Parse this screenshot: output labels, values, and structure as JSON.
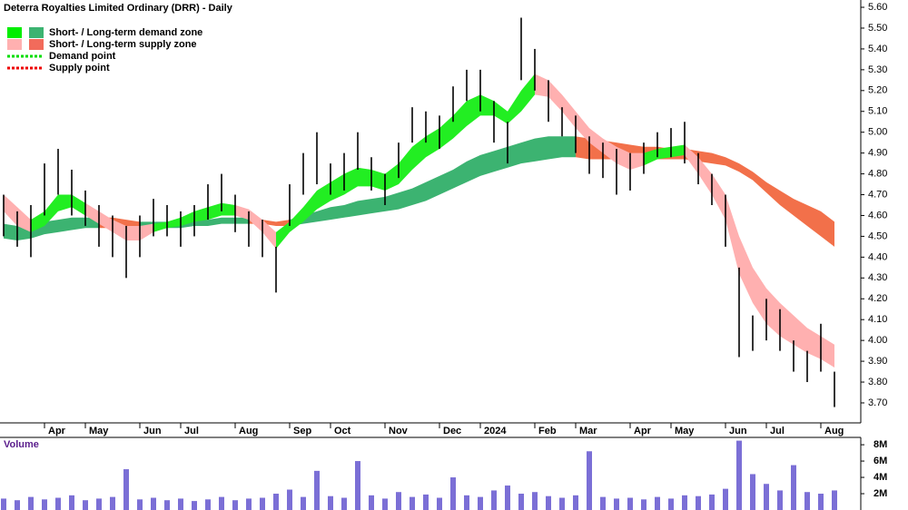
{
  "chart_data": [
    {
      "type": "ohlc",
      "title": "Deterra Royalties Limited Ordinary (DRR) - Daily",
      "categories": [
        null,
        null,
        null,
        "Apr",
        null,
        null,
        "May",
        null,
        null,
        null,
        "Jun",
        null,
        null,
        "Jul",
        null,
        null,
        null,
        "Aug",
        null,
        null,
        null,
        "Sep",
        null,
        null,
        "Oct",
        null,
        null,
        null,
        "Nov",
        null,
        null,
        null,
        "Dec",
        null,
        null,
        "2024",
        null,
        null,
        null,
        "Feb",
        null,
        null,
        "Mar",
        null,
        null,
        null,
        "Apr",
        null,
        null,
        "May",
        null,
        null,
        null,
        "Jun",
        null,
        null,
        "Jul",
        null,
        null,
        null,
        "Aug",
        null
      ],
      "high": [
        4.7,
        4.62,
        4.65,
        4.85,
        4.92,
        4.82,
        4.72,
        4.65,
        4.6,
        4.55,
        4.6,
        4.68,
        4.65,
        4.62,
        4.65,
        4.75,
        4.8,
        4.7,
        4.62,
        4.58,
        4.45,
        4.75,
        4.9,
        5.0,
        4.85,
        4.9,
        5.0,
        4.88,
        4.8,
        4.95,
        5.12,
        5.1,
        5.08,
        5.22,
        5.3,
        5.3,
        5.15,
        5.05,
        5.55,
        5.4,
        5.25,
        5.12,
        5.08,
        4.98,
        4.95,
        4.92,
        4.9,
        4.95,
        5.0,
        5.02,
        5.05,
        4.9,
        4.8,
        4.7,
        4.35,
        4.12,
        4.2,
        4.15,
        4.0,
        3.95,
        4.08,
        3.85
      ],
      "low": [
        4.5,
        4.45,
        4.4,
        4.6,
        4.7,
        4.6,
        4.55,
        4.45,
        4.4,
        4.3,
        4.4,
        4.5,
        4.5,
        4.45,
        4.5,
        4.58,
        4.62,
        4.52,
        4.45,
        4.4,
        4.23,
        4.55,
        4.7,
        4.75,
        4.7,
        4.72,
        4.82,
        4.72,
        4.65,
        4.78,
        4.95,
        4.95,
        4.92,
        5.05,
        5.15,
        5.1,
        4.95,
        4.85,
        5.25,
        5.2,
        5.05,
        4.98,
        4.9,
        4.8,
        4.78,
        4.7,
        4.72,
        4.8,
        4.88,
        4.88,
        4.85,
        4.75,
        4.65,
        4.45,
        3.92,
        3.95,
        4.0,
        3.95,
        3.85,
        3.8,
        3.85,
        3.68
      ],
      "color": "#000000",
      "bands": [
        {
          "color": "#3cb371",
          "upper": [
            4.56,
            4.55,
            4.56,
            4.57,
            4.58,
            4.59,
            4.59,
            4.59,
            null,
            null,
            4.57,
            4.57,
            4.57,
            4.57,
            4.58,
            4.58,
            4.59,
            4.59,
            4.59,
            null,
            null,
            4.58,
            4.6,
            4.62,
            4.64,
            4.65,
            4.67,
            4.68,
            4.69,
            4.71,
            4.73,
            4.76,
            4.79,
            4.82,
            4.86,
            4.89,
            4.91,
            4.93,
            4.95,
            4.97,
            4.98,
            4.98,
            4.98,
            null,
            null,
            null,
            null,
            null,
            null,
            null,
            null,
            null,
            null,
            null,
            null,
            null,
            null,
            null,
            null,
            null,
            null,
            null
          ],
          "lower": [
            4.49,
            4.48,
            4.49,
            4.51,
            4.52,
            4.53,
            4.54,
            4.54,
            null,
            null,
            4.54,
            4.54,
            4.54,
            4.54,
            4.55,
            4.55,
            4.56,
            4.56,
            4.56,
            null,
            null,
            4.55,
            4.56,
            4.57,
            4.58,
            4.59,
            4.6,
            4.61,
            4.62,
            4.63,
            4.65,
            4.67,
            4.7,
            4.73,
            4.76,
            4.79,
            4.81,
            4.83,
            4.85,
            4.86,
            4.87,
            4.88,
            4.88,
            null,
            null,
            null,
            null,
            null,
            null,
            null,
            null,
            null,
            null,
            null,
            null,
            null,
            null,
            null,
            null,
            null,
            null,
            null
          ]
        },
        {
          "color": "#f2704a",
          "upper": [
            null,
            null,
            null,
            null,
            null,
            null,
            null,
            4.59,
            4.59,
            4.58,
            4.57,
            null,
            null,
            null,
            null,
            null,
            null,
            null,
            4.59,
            4.58,
            4.57,
            4.58,
            null,
            null,
            null,
            null,
            null,
            null,
            null,
            null,
            null,
            null,
            null,
            null,
            null,
            null,
            null,
            null,
            null,
            null,
            null,
            null,
            4.98,
            4.97,
            4.96,
            4.95,
            4.94,
            4.93,
            4.93,
            4.92,
            4.92,
            4.91,
            4.9,
            4.88,
            4.85,
            4.81,
            4.76,
            4.72,
            4.68,
            4.65,
            4.62,
            4.57
          ],
          "lower": [
            null,
            null,
            null,
            null,
            null,
            null,
            null,
            4.54,
            4.54,
            4.54,
            4.54,
            null,
            null,
            null,
            null,
            null,
            null,
            null,
            4.56,
            4.56,
            4.55,
            4.55,
            null,
            null,
            null,
            null,
            null,
            null,
            null,
            null,
            null,
            null,
            null,
            null,
            null,
            null,
            null,
            null,
            null,
            null,
            null,
            null,
            4.88,
            4.87,
            4.87,
            4.87,
            4.87,
            4.87,
            4.87,
            4.87,
            4.87,
            4.86,
            4.85,
            4.84,
            4.81,
            4.77,
            4.71,
            4.65,
            4.6,
            4.55,
            4.5,
            4.45
          ]
        },
        {
          "color": "#22ee22",
          "upper": [
            null,
            null,
            4.58,
            4.62,
            4.7,
            4.7,
            4.66,
            null,
            null,
            null,
            null,
            4.56,
            4.57,
            4.59,
            4.62,
            4.64,
            4.66,
            4.65,
            null,
            null,
            4.52,
            4.57,
            4.64,
            4.72,
            4.76,
            4.8,
            4.83,
            4.82,
            4.8,
            4.85,
            4.93,
            4.98,
            5.02,
            5.08,
            5.15,
            5.18,
            5.15,
            5.1,
            5.2,
            5.28,
            null,
            null,
            null,
            null,
            null,
            null,
            null,
            4.9,
            4.92,
            4.93,
            4.94,
            null,
            null,
            null,
            null,
            null,
            null,
            null,
            null,
            null,
            null,
            null
          ],
          "lower": [
            null,
            null,
            4.52,
            4.55,
            4.62,
            4.64,
            4.6,
            null,
            null,
            null,
            null,
            4.52,
            4.54,
            4.55,
            4.57,
            4.58,
            4.6,
            4.6,
            null,
            null,
            4.44,
            4.52,
            4.57,
            4.63,
            4.67,
            4.7,
            4.74,
            4.74,
            4.72,
            4.75,
            4.82,
            4.88,
            4.92,
            4.97,
            5.03,
            5.08,
            5.08,
            5.04,
            5.1,
            5.18,
            null,
            null,
            null,
            null,
            null,
            null,
            null,
            4.84,
            4.87,
            4.88,
            4.89,
            null,
            null,
            null,
            null,
            null,
            null,
            null,
            null,
            null,
            null,
            null
          ]
        },
        {
          "color": "#ffb0b0",
          "upper": [
            4.7,
            4.64,
            4.58,
            null,
            null,
            null,
            4.66,
            4.62,
            4.58,
            4.55,
            4.55,
            4.56,
            null,
            null,
            null,
            null,
            null,
            4.65,
            4.63,
            4.58,
            4.52,
            null,
            null,
            null,
            null,
            null,
            null,
            null,
            null,
            null,
            null,
            null,
            null,
            null,
            null,
            null,
            null,
            null,
            null,
            5.28,
            5.25,
            5.18,
            5.1,
            5.02,
            4.97,
            4.93,
            4.9,
            4.9,
            null,
            null,
            4.94,
            4.88,
            4.8,
            4.7,
            4.5,
            4.35,
            4.25,
            4.18,
            4.12,
            4.06,
            4.02,
            3.98
          ],
          "lower": [
            4.62,
            4.55,
            4.52,
            null,
            null,
            null,
            4.6,
            4.56,
            4.52,
            4.48,
            4.48,
            4.52,
            null,
            null,
            null,
            null,
            null,
            4.6,
            4.58,
            4.52,
            4.44,
            null,
            null,
            null,
            null,
            null,
            null,
            null,
            null,
            null,
            null,
            null,
            null,
            null,
            null,
            null,
            null,
            null,
            null,
            5.18,
            5.17,
            5.1,
            5.02,
            4.95,
            4.9,
            4.85,
            4.82,
            4.84,
            null,
            null,
            4.89,
            4.8,
            4.7,
            4.58,
            4.32,
            4.18,
            4.08,
            4.02,
            3.98,
            3.94,
            3.91,
            3.87
          ]
        }
      ],
      "legend": [
        {
          "label": "Short- / Long-term demand zone",
          "colors": [
            "#00ee00",
            "#3cb371"
          ],
          "style": "solid"
        },
        {
          "label": "Short- / Long-term supply zone",
          "colors": [
            "#ffb0b0",
            "#f26b5b"
          ],
          "style": "solid"
        },
        {
          "label": "Demand point",
          "colors": [
            "#00dd00"
          ],
          "style": "dotted"
        },
        {
          "label": "Supply point",
          "colors": [
            "#ee0000"
          ],
          "style": "dotted"
        }
      ],
      "ylim": [
        3.604,
        5.635
      ],
      "yticks": [
        {
          "value": 3.7,
          "label": "3.70"
        },
        {
          "value": 3.8,
          "label": "3.80"
        },
        {
          "value": 3.9,
          "label": "3.90"
        },
        {
          "value": 4.0,
          "label": "4.00"
        },
        {
          "value": 4.1,
          "label": "4.10"
        },
        {
          "value": 4.2,
          "label": "4.20"
        },
        {
          "value": 4.3,
          "label": "4.30"
        },
        {
          "value": 4.4,
          "label": "4.40"
        },
        {
          "value": 4.5,
          "label": "4.50"
        },
        {
          "value": 4.6,
          "label": "4.60"
        },
        {
          "value": 4.7,
          "label": "4.70"
        },
        {
          "value": 4.8,
          "label": "4.80"
        },
        {
          "value": 4.9,
          "label": "4.90"
        },
        {
          "value": 5.0,
          "label": "5.00"
        },
        {
          "value": 5.1,
          "label": "5.10"
        },
        {
          "value": 5.2,
          "label": "5.20"
        },
        {
          "value": 5.3,
          "label": "5.30"
        },
        {
          "value": 5.4,
          "label": "5.40"
        },
        {
          "value": 5.5,
          "label": "5.50"
        },
        {
          "value": 5.6,
          "label": "5.60"
        }
      ],
      "grid": false
    },
    {
      "type": "bar",
      "title": "Volume",
      "color": "#7b6fd6",
      "values": [
        1.4,
        1.2,
        1.6,
        1.3,
        1.5,
        1.8,
        1.2,
        1.4,
        1.6,
        5.0,
        1.3,
        1.5,
        1.2,
        1.4,
        1.1,
        1.3,
        1.6,
        1.2,
        1.4,
        1.5,
        2.0,
        2.5,
        1.6,
        4.8,
        1.7,
        1.5,
        6.0,
        1.8,
        1.4,
        2.2,
        1.6,
        1.9,
        1.5,
        4.0,
        1.8,
        1.6,
        2.4,
        3.0,
        2.0,
        2.2,
        1.7,
        1.5,
        1.8,
        7.2,
        1.6,
        1.4,
        1.5,
        1.3,
        1.6,
        1.4,
        1.8,
        1.7,
        1.9,
        2.6,
        8.5,
        4.4,
        3.2,
        2.4,
        5.5,
        2.2,
        2.0,
        2.4
      ],
      "ylim": [
        0,
        8.9
      ],
      "yticks": [
        {
          "value": 2,
          "label": "2M"
        },
        {
          "value": 4,
          "label": "4M"
        },
        {
          "value": 6,
          "label": "6M"
        },
        {
          "value": 8,
          "label": "8M"
        }
      ],
      "grid": false
    }
  ]
}
